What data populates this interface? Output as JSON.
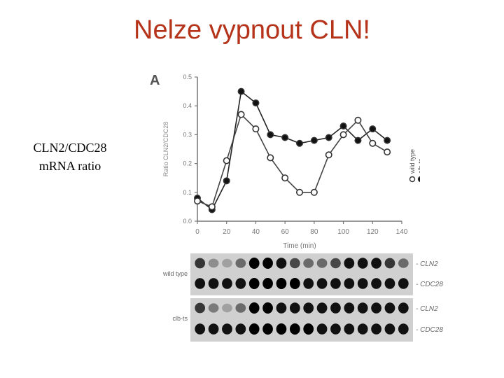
{
  "slide": {
    "title": "Nelze vypnout CLN!",
    "side_label_line1": "CLN2/CDC28",
    "side_label_line2": "mRNA ratio"
  },
  "figure": {
    "panel": "A",
    "blot_rows": [
      {
        "group": "wild type",
        "probe": "- CLN2"
      },
      {
        "group": "",
        "probe": "- CDC28"
      },
      {
        "group": "clb-ts",
        "probe": "- CLN2"
      },
      {
        "group": "",
        "probe": "- CDC28"
      }
    ]
  },
  "chart_data": {
    "type": "line",
    "xlabel": "Time (min)",
    "ylabel": "Ratio CLN2/CDC28",
    "xlim": [
      0,
      140
    ],
    "ylim": [
      0,
      0.5
    ],
    "xticks": [
      0,
      20,
      40,
      60,
      80,
      100,
      120,
      140
    ],
    "yticks": [
      0.0,
      0.1,
      0.2,
      0.3,
      0.4,
      0.5
    ],
    "grid": false,
    "legend_position": "right",
    "series": [
      {
        "name": "wild type",
        "marker": "open-circle",
        "color": "#444444",
        "x": [
          0,
          10,
          20,
          30,
          40,
          50,
          60,
          70,
          80,
          90,
          100,
          110,
          120,
          130
        ],
        "y": [
          0.07,
          0.05,
          0.21,
          0.37,
          0.32,
          0.22,
          0.15,
          0.1,
          0.1,
          0.23,
          0.3,
          0.35,
          0.27,
          0.24
        ]
      },
      {
        "name": "clb-ts",
        "marker": "filled-circle",
        "color": "#222222",
        "x": [
          0,
          10,
          20,
          30,
          40,
          50,
          60,
          70,
          80,
          90,
          100,
          110,
          120,
          130
        ],
        "y": [
          0.08,
          0.04,
          0.14,
          0.45,
          0.41,
          0.3,
          0.29,
          0.27,
          0.28,
          0.29,
          0.33,
          0.28,
          0.32,
          0.28
        ]
      }
    ]
  }
}
